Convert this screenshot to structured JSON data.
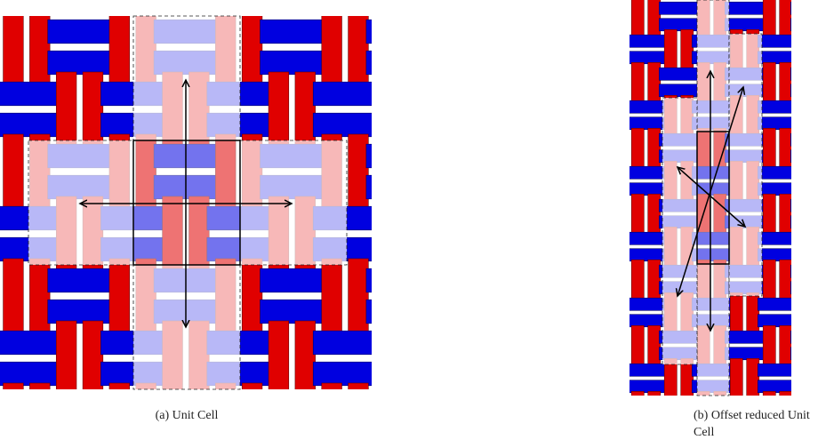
{
  "figure": {
    "subfigures": [
      {
        "caption": "(a) Unit Cell"
      },
      {
        "caption": "(b) Offset reduced Unit Cell"
      }
    ]
  }
}
